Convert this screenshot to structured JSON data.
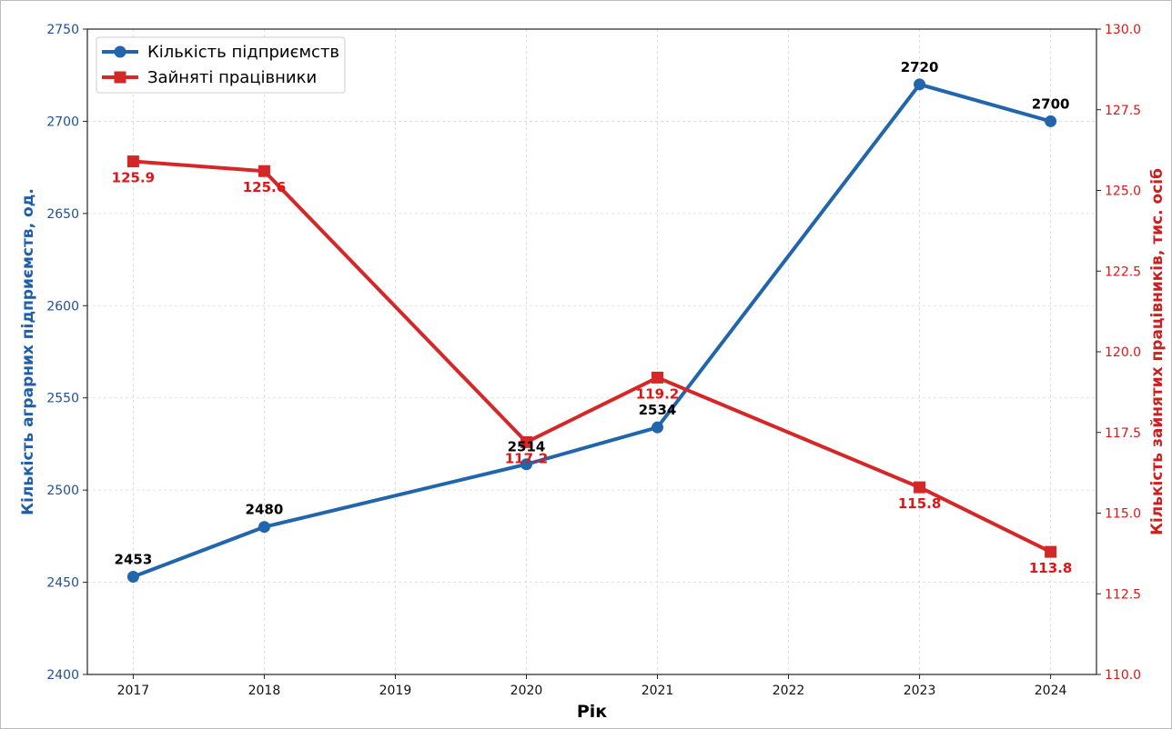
{
  "chart_data": {
    "type": "line",
    "x": [
      "2017",
      "2018",
      "2019",
      "2020",
      "2021",
      "2022",
      "2023",
      "2024"
    ],
    "xlabel": "Рік",
    "ylabel_left": "Кількість аграрних підприємств, од.",
    "ylabel_right": "Кількість зайнятих працівників, тис. осіб",
    "ylim_left": [
      2400,
      2750
    ],
    "ylim_right": [
      110.0,
      130.0
    ],
    "yticks_left": [
      "2400",
      "2450",
      "2500",
      "2550",
      "2600",
      "2650",
      "2700",
      "2750"
    ],
    "yticks_right": [
      "110.0",
      "112.5",
      "115.0",
      "117.5",
      "120.0",
      "122.5",
      "125.0",
      "127.5",
      "130.0"
    ],
    "grid": true,
    "legend_position": "top-left",
    "series": [
      {
        "name": "Кількість підприємств",
        "axis": "left",
        "color": "#2166ac",
        "marker": "circle",
        "x": [
          "2017",
          "2018",
          "2020",
          "2021",
          "2023",
          "2024"
        ],
        "values": [
          2453,
          2480,
          2514,
          2534,
          2720,
          2700
        ],
        "labels": [
          "2453",
          "2480",
          "2514",
          "2534",
          "2720",
          "2700"
        ]
      },
      {
        "name": "Зайняті працівники",
        "axis": "right",
        "color": "#d62728",
        "marker": "square",
        "x": [
          "2017",
          "2018",
          "2020",
          "2021",
          "2023",
          "2024"
        ],
        "values": [
          125.9,
          125.6,
          117.2,
          119.2,
          115.8,
          113.8
        ],
        "labels": [
          "125.9",
          "125.6",
          "117.2",
          "119.2",
          "115.8",
          "113.8"
        ]
      }
    ]
  }
}
